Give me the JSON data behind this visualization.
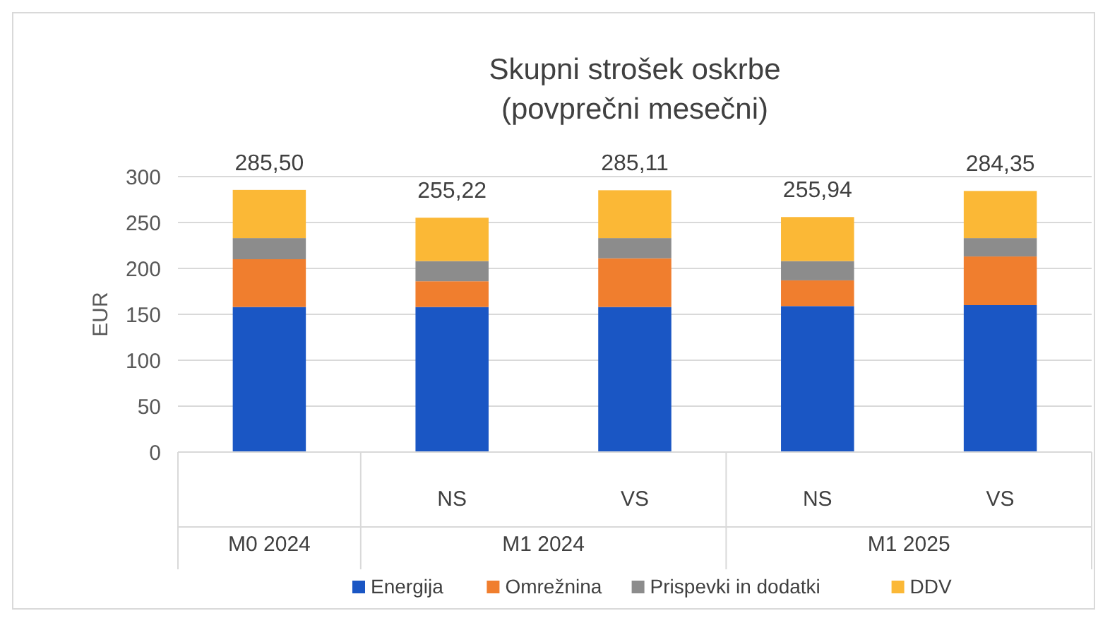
{
  "chart_data": {
    "type": "bar",
    "title": "Skupni strošek oskrbe",
    "subtitle": "(povprečni mesečni)",
    "ylabel": "EUR",
    "categories": [
      null,
      "NS",
      "VS",
      "NS",
      "VS"
    ],
    "annotations": [
      "M0 2024",
      "M1 2024",
      "M1 2025"
    ],
    "stacked": true,
    "series": [
      {
        "name": "Energija",
        "color": "#1a56c4",
        "values": [
          158,
          158,
          158,
          159,
          160
        ]
      },
      {
        "name": "Omrežnina",
        "color": "#f07e2e",
        "values": [
          52,
          28,
          53,
          28,
          53
        ]
      },
      {
        "name": "Prispevki in dodatki",
        "color": "#8c8c8c",
        "values": [
          23,
          22,
          22,
          21,
          20
        ]
      },
      {
        "name": "DDV",
        "color": "#fbb836",
        "values": [
          52.5,
          47.22,
          52.11,
          47.94,
          51.35
        ]
      }
    ],
    "totals": [
      "285,50",
      "255,22",
      "285,11",
      "255,94",
      "284,35"
    ],
    "ylim": [
      0,
      300
    ],
    "yticks": [
      0,
      50,
      100,
      150,
      200,
      250,
      300
    ],
    "grid": "y",
    "legend": "bottom"
  }
}
